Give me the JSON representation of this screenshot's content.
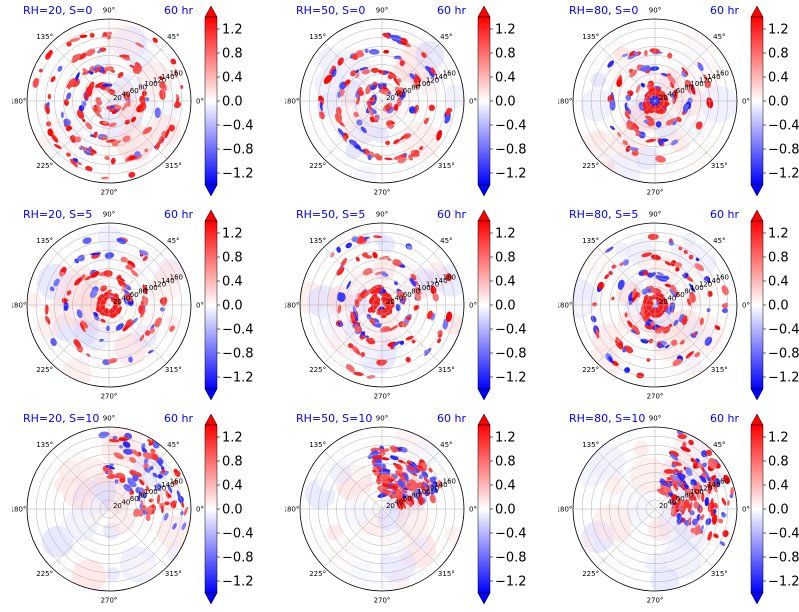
{
  "chart_data": {
    "type": "heatmap",
    "projection": "polar",
    "grid": true,
    "angular_ticks": [
      "0°",
      "45°",
      "90°",
      "135°",
      "180°",
      "225°",
      "270°",
      "315°"
    ],
    "radial_ticks": [
      "20",
      "40",
      "60",
      "80",
      "100",
      "120",
      "140",
      "160"
    ],
    "radial_range": [
      0,
      180
    ],
    "colormap": "bwr",
    "colorbar": {
      "min": -1.4,
      "max": 1.4,
      "ticks": [
        1.2,
        0.8,
        0.4,
        0.0,
        -0.4,
        -0.8,
        -1.2
      ],
      "tick_labels": [
        "1.2",
        "0.8",
        "0.4",
        "0.0",
        "−0.4",
        "−0.8",
        "−1.2"
      ],
      "extend": "both"
    },
    "colors": {
      "positive": "#ff0000",
      "zero": "#ffffff",
      "negative": "#0000ff",
      "title_text": "#0000ff"
    },
    "panels": [
      {
        "title": "RH=20, S=0",
        "time": "60 hr",
        "RH": 20,
        "S": 0
      },
      {
        "title": "RH=50, S=0",
        "time": "60 hr",
        "RH": 50,
        "S": 0
      },
      {
        "title": "RH=80, S=0",
        "time": "60 hr",
        "RH": 80,
        "S": 0
      },
      {
        "title": "RH=20, S=5",
        "time": "60 hr",
        "RH": 20,
        "S": 5
      },
      {
        "title": "RH=50, S=5",
        "time": "60 hr",
        "RH": 50,
        "S": 5
      },
      {
        "title": "RH=80, S=5",
        "time": "60 hr",
        "RH": 80,
        "S": 5
      },
      {
        "title": "RH=20, S=10",
        "time": "60 hr",
        "RH": 20,
        "S": 10
      },
      {
        "title": "RH=50, S=10",
        "time": "60 hr",
        "RH": 50,
        "S": 10
      },
      {
        "title": "RH=80, S=10",
        "time": "60 hr",
        "RH": 80,
        "S": 10
      }
    ]
  }
}
